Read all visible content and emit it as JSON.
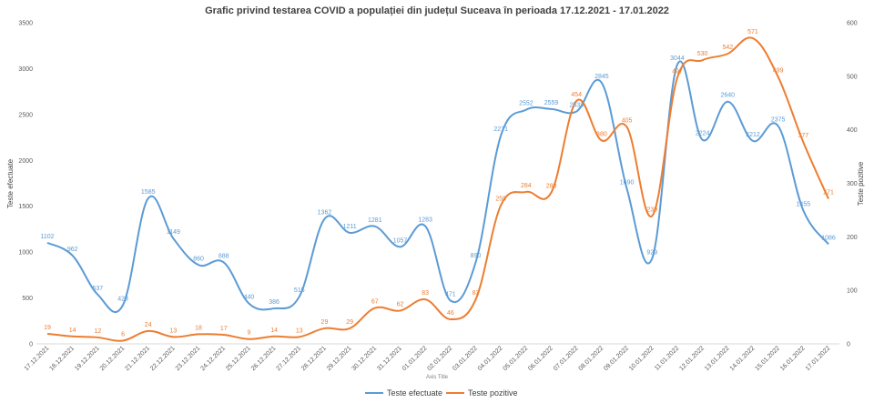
{
  "chart_data": {
    "type": "line",
    "title": "Grafic privind testarea COVID a populației din județul Suceava în perioada 17.12.2021 - 17.01.2022",
    "xlabel": "Axis Title",
    "ylabel_left": "Teste efectuate",
    "ylabel_right": "Teste pozitive",
    "ylim_left": [
      0,
      3500
    ],
    "ylim_right": [
      0,
      600
    ],
    "yticks_left": [
      "0",
      "500",
      "1000",
      "1500",
      "2000",
      "2500",
      "3000",
      "3500"
    ],
    "yticks_right": [
      "0",
      "100",
      "200",
      "300",
      "400",
      "500",
      "600"
    ],
    "grid": false,
    "legend_position": "bottom",
    "categories": [
      "17.12.2021",
      "18.12.2021",
      "19.12.2021",
      "20.12.2021",
      "21.12.2021",
      "22.12.2021",
      "23.12.2021",
      "24.12.2021",
      "25.12.2021",
      "26.12.2021",
      "27.12.2021",
      "28.12.2021",
      "29.12.2021",
      "30.12.2021",
      "31.12.2021",
      "01.01.2022",
      "02.01.2022",
      "03.01.2022",
      "04.01.2022",
      "05.01.2022",
      "06.01.2022",
      "07.01.2022",
      "08.01.2022",
      "09.01.2022",
      "10.01.2022",
      "11.01.2022",
      "12.01.2022",
      "13.01.2022",
      "14.01.2022",
      "15.01.2022",
      "16.01.2022",
      "17.01.2022"
    ],
    "series": [
      {
        "name": "Teste efectuate",
        "axis": "left",
        "color": "#5b9bd5",
        "values": [
          1102,
          962,
          537,
          423,
          1585,
          1149,
          860,
          888,
          440,
          386,
          515,
          1362,
          1211,
          1281,
          1057,
          1283,
          471,
          890,
          2271,
          2552,
          2559,
          2533,
          2845,
          1690,
          929,
          3044,
          2224,
          2640,
          2212,
          2375,
          1455,
          1086
        ],
        "labels": [
          "1102",
          "962",
          "537",
          "423",
          "1585",
          "1149",
          "860",
          "888",
          "440",
          "386",
          "515",
          "1362",
          "1211",
          "1281",
          "1057",
          "1283",
          "471",
          "890",
          "2271",
          "2552",
          "2559",
          "2533",
          "2845",
          "1690",
          "929",
          "3044",
          "2224",
          "2640",
          "2212",
          "2375",
          "1455",
          "1086"
        ]
      },
      {
        "name": "Teste pozitive",
        "axis": "right",
        "color": "#ed7d31",
        "values": [
          19,
          14,
          12,
          6,
          24,
          13,
          18,
          17,
          9,
          14,
          13,
          29,
          29,
          67,
          62,
          83,
          46,
          83,
          259,
          284,
          283,
          454,
          380,
          405,
          239,
          497,
          530,
          542,
          571,
          499,
          377,
          271
        ],
        "labels": [
          "19",
          "14",
          "12",
          "6",
          "24",
          "13",
          "18",
          "17",
          "9",
          "14",
          "13",
          "29",
          "29",
          "67",
          "62",
          "83",
          "46",
          "83",
          "259",
          "284",
          "283",
          "454",
          "380",
          "405",
          "239",
          "497",
          "530",
          "542",
          "571",
          "499",
          "377",
          "271"
        ]
      }
    ]
  }
}
